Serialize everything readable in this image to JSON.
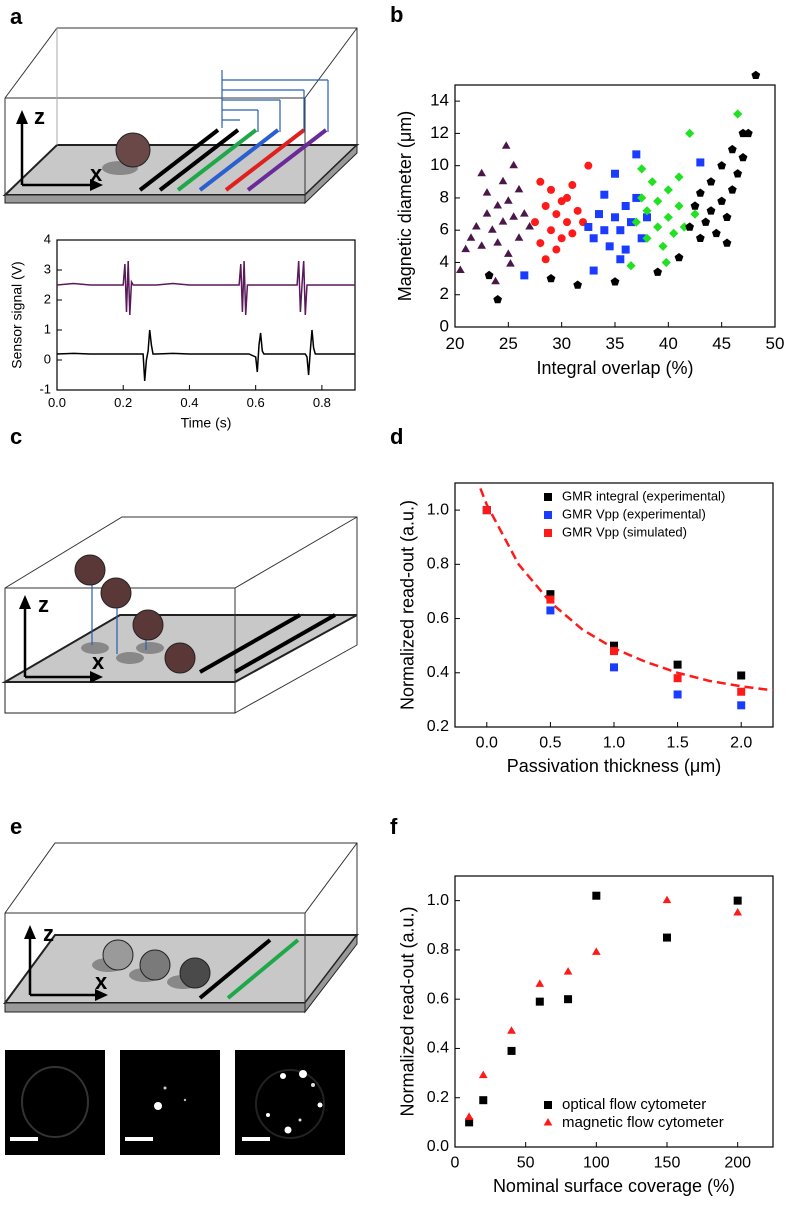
{
  "panel_labels": [
    "a",
    "b",
    "c",
    "d",
    "e",
    "f"
  ],
  "schematics": [
    {
      "axis_labels": [
        "z",
        "x"
      ]
    },
    {
      "axis_labels": [
        "z",
        "x"
      ]
    },
    {
      "axis_labels": [
        "z",
        "x"
      ]
    }
  ],
  "chart_data": [
    {
      "type": "line",
      "x_label": "Time (s)",
      "y_label": "Sensor signal (V)",
      "x": [
        0,
        0.05,
        0.1,
        0.15,
        0.19,
        0.2,
        0.205,
        0.21,
        0.215,
        0.22,
        0.225,
        0.23,
        0.25,
        0.26,
        0.265,
        0.27,
        0.275,
        0.28,
        0.285,
        0.29,
        0.3,
        0.35,
        0.4,
        0.45,
        0.5,
        0.54,
        0.55,
        0.555,
        0.56,
        0.565,
        0.57,
        0.575,
        0.58,
        0.6,
        0.605,
        0.61,
        0.615,
        0.62,
        0.625,
        0.63,
        0.65,
        0.7,
        0.72,
        0.725,
        0.73,
        0.735,
        0.74,
        0.745,
        0.75,
        0.755,
        0.76,
        0.765,
        0.77,
        0.775,
        0.78,
        0.8,
        0.85,
        0.9
      ],
      "series": [
        {
          "color": "#5a1a5a",
          "values": [
            2.5,
            2.55,
            2.5,
            2.5,
            2.5,
            2.5,
            3.2,
            1.6,
            3.3,
            1.5,
            2.6,
            2.5,
            2.5,
            2.5,
            2.5,
            2.5,
            2.5,
            2.5,
            2.5,
            2.5,
            2.5,
            2.55,
            2.5,
            2.5,
            2.5,
            2.5,
            2.5,
            3.2,
            1.6,
            3.3,
            1.5,
            2.5,
            2.5,
            2.5,
            2.5,
            2.5,
            2.5,
            2.5,
            2.5,
            2.5,
            2.5,
            2.5,
            2.5,
            2.5,
            3.3,
            1.6,
            2.5,
            3.3,
            1.5,
            2.5,
            2.5,
            2.5,
            2.5,
            2.5,
            2.5,
            2.5,
            2.5,
            2.5
          ]
        },
        {
          "color": "#000000",
          "values": [
            0.2,
            0.22,
            0.2,
            0.2,
            0.2,
            0.2,
            0.2,
            0.2,
            0.2,
            0.2,
            0.2,
            0.2,
            0.2,
            0.2,
            -0.7,
            0,
            0.3,
            1.0,
            0.5,
            0.2,
            0.2,
            0.22,
            0.2,
            0.2,
            0.2,
            0.2,
            0.2,
            0.2,
            0.2,
            0.2,
            0.2,
            0.2,
            0.2,
            0.1,
            -0.4,
            0.5,
            0.9,
            0.3,
            0.2,
            0.2,
            0.2,
            0.2,
            0.2,
            0.2,
            0.2,
            0.2,
            0.2,
            0.2,
            0.2,
            0.1,
            -0.5,
            0.3,
            1.0,
            0.4,
            0.2,
            0.2,
            0.2,
            0.2
          ]
        }
      ],
      "xlim": [
        0,
        0.9
      ],
      "xticks": [
        {
          "value": 0,
          "label": "0.0"
        },
        0.2,
        0.4,
        0.6,
        0.8
      ],
      "ylim": [
        -1,
        4
      ],
      "yticks": [
        -1,
        0,
        1,
        2,
        3,
        4
      ]
    },
    {
      "type": "scatter",
      "x_label": "Integral overlap (%)",
      "y_label": "Magnetic diameter (μm)",
      "series": [
        {
          "color": "#4a1848",
          "marker": "triangle",
          "x": [
            20.5,
            21.5,
            22,
            22.5,
            23,
            23,
            23.5,
            24,
            24,
            24.5,
            24.5,
            25,
            25,
            25.5,
            25.5,
            26,
            26,
            26.5,
            22.5,
            24.8,
            25.2,
            23.8,
            27,
            21
          ],
          "values": [
            3.5,
            5.5,
            6.2,
            5,
            7,
            8.3,
            6,
            5.2,
            7.5,
            9,
            6.5,
            4.5,
            7.8,
            6.8,
            10,
            5.5,
            8.5,
            7,
            9.5,
            11.2,
            3.9,
            2.8,
            6.2,
            4.8
          ]
        },
        {
          "color": "#ff1a1a",
          "marker": "circle",
          "x": [
            27.5,
            28,
            28.5,
            29,
            29,
            29.5,
            30,
            30,
            30.5,
            31,
            31,
            31.5,
            32,
            28,
            29.5,
            30.5,
            32.5,
            28.5
          ],
          "values": [
            6.5,
            5.2,
            7.5,
            6,
            8.5,
            7,
            5.5,
            7.8,
            6.5,
            8.8,
            5.8,
            7.2,
            6.5,
            9,
            4.8,
            8,
            10,
            4.2
          ]
        },
        {
          "color": "#1a3cff",
          "marker": "square",
          "x": [
            32.5,
            33,
            33.5,
            34,
            34,
            34.5,
            35,
            35,
            35.5,
            36,
            36,
            36.5,
            37,
            37,
            37.5,
            33,
            35.5,
            26.5,
            38,
            43
          ],
          "values": [
            6.2,
            5.5,
            7,
            6,
            8.2,
            5,
            6.8,
            9.5,
            6,
            7.5,
            4.8,
            6.5,
            10.7,
            8,
            5.5,
            3.5,
            4.2,
            3.2,
            6.8,
            10.2
          ]
        },
        {
          "color": "#22e022",
          "marker": "diamond",
          "x": [
            37,
            37.5,
            38,
            38,
            38.5,
            39,
            39,
            39.5,
            40,
            40,
            40.5,
            41,
            41.5,
            42,
            37.5,
            39.8,
            42.5,
            46.5,
            36.5,
            41
          ],
          "values": [
            6.5,
            8,
            5.5,
            7.2,
            9,
            6.2,
            7.8,
            5,
            6.8,
            8.5,
            5.8,
            7.5,
            6.2,
            12,
            9.8,
            4,
            7,
            13.2,
            3.8,
            9.3
          ]
        },
        {
          "color": "#000000",
          "marker": "pentagon",
          "x": [
            42,
            42.5,
            43,
            43,
            43.5,
            44,
            44,
            44.5,
            45,
            45,
            45.5,
            46,
            46,
            46.5,
            47,
            47.5,
            48.2,
            47,
            45.5,
            24,
            29,
            31.5,
            35,
            39,
            41,
            23.2
          ],
          "values": [
            6.2,
            7.5,
            5.5,
            8.3,
            6.5,
            7.2,
            9,
            5.8,
            7.8,
            10,
            6.8,
            8.5,
            11,
            9.5,
            12,
            12,
            15.6,
            10.5,
            5.2,
            1.7,
            3,
            2.6,
            2.8,
            3.4,
            4.3,
            3.2
          ]
        }
      ],
      "xlim": [
        20,
        50
      ],
      "xticks": [
        20,
        25,
        30,
        35,
        40,
        45,
        50
      ],
      "ylim": [
        0,
        15
      ],
      "yticks": [
        0,
        2,
        4,
        6,
        8,
        10,
        12,
        14
      ]
    },
    {
      "type": "scatter",
      "x_label": "Passivation thickness (μm)",
      "y_label": "Normalized read-out (a.u.)",
      "series": [
        {
          "name": "GMR integral (experimental)",
          "color": "#000000",
          "marker": "square",
          "x": [
            0,
            0.5,
            1,
            1.5,
            2
          ],
          "values": [
            1.0,
            0.69,
            0.5,
            0.43,
            0.39
          ]
        },
        {
          "name": "GMR Vpp (experimental)",
          "color": "#1a3cff",
          "marker": "square",
          "x": [
            0,
            0.5,
            1,
            1.5,
            2
          ],
          "values": [
            1.0,
            0.63,
            0.42,
            0.32,
            0.28
          ]
        },
        {
          "name": "GMR Vpp (simulated)",
          "color": "#ff1a1a",
          "marker": "square",
          "x": [
            0,
            0.5,
            1,
            1.5,
            2
          ],
          "values": [
            1.0,
            0.67,
            0.48,
            0.38,
            0.33
          ]
        }
      ],
      "fit": {
        "color": "#ff1a1a",
        "x": [
          -0.05,
          0,
          0.25,
          0.5,
          0.75,
          1,
          1.25,
          1.5,
          1.75,
          2,
          2.25
        ],
        "values": [
          1.08,
          1.02,
          0.8,
          0.66,
          0.56,
          0.49,
          0.44,
          0.4,
          0.37,
          0.35,
          0.335
        ]
      },
      "legend": "upper right",
      "xlim": [
        -0.25,
        2.25
      ],
      "xticks": [
        {
          "value": 0,
          "label": "0.0"
        },
        0.5,
        {
          "value": 1,
          "label": "1.0"
        },
        1.5,
        {
          "value": 2,
          "label": "2.0"
        }
      ],
      "ylim": [
        0.2,
        1.1
      ],
      "yticks": [
        0.2,
        0.4,
        0.6,
        0.8,
        {
          "value": 1,
          "label": "1.0"
        }
      ]
    },
    {
      "type": "scatter",
      "x_label": "Nominal surface coverage (%)",
      "y_label": "Normalized read-out (a.u.)",
      "series": [
        {
          "name": "optical flow cytometer",
          "color": "#000000",
          "marker": "square",
          "x": [
            10,
            20,
            40,
            60,
            80,
            100,
            150,
            200
          ],
          "values": [
            0.1,
            0.19,
            0.39,
            0.59,
            0.6,
            1.02,
            0.85,
            1.0
          ]
        },
        {
          "name": "magnetic flow cytometer",
          "color": "#ff1a1a",
          "marker": "triangle",
          "x": [
            10,
            20,
            40,
            60,
            80,
            100,
            150,
            200
          ],
          "values": [
            0.12,
            0.29,
            0.47,
            0.66,
            0.71,
            0.79,
            1.0,
            0.95
          ]
        }
      ],
      "legend": "lower right",
      "xlim": [
        0,
        225
      ],
      "xticks": [
        0,
        50,
        100,
        150,
        200
      ],
      "ylim": [
        0,
        1.1
      ],
      "yticks": [
        {
          "value": 0,
          "label": "0.0"
        },
        0.2,
        0.4,
        0.6,
        0.8,
        {
          "value": 1,
          "label": "1.0"
        }
      ]
    }
  ]
}
